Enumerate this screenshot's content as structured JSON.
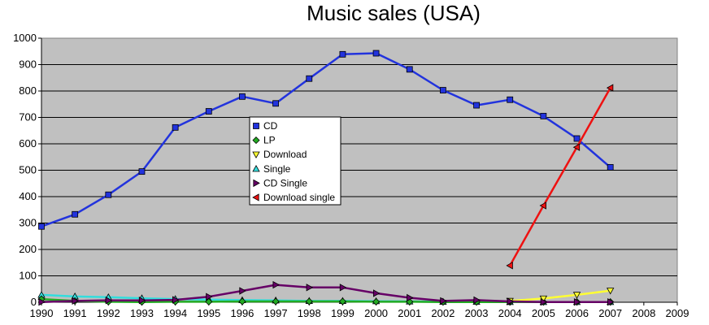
{
  "chart_data": {
    "type": "line",
    "title": "Music sales (USA)",
    "xlabel": "",
    "ylabel": "",
    "x": [
      1990,
      1991,
      1992,
      1993,
      1994,
      1995,
      1996,
      1997,
      1998,
      1999,
      2000,
      2001,
      2002,
      2003,
      2004,
      2005,
      2006,
      2007,
      2008,
      2009
    ],
    "xlim": [
      1990,
      2009
    ],
    "ylim": [
      0,
      1000
    ],
    "yticks": [
      0,
      100,
      200,
      300,
      400,
      500,
      600,
      700,
      800,
      900,
      1000
    ],
    "grid": true,
    "legend_position": "center-left",
    "series": [
      {
        "name": "CD",
        "color": "#2233dd",
        "marker": "square",
        "x": [
          1990,
          1991,
          1992,
          1993,
          1994,
          1995,
          1996,
          1997,
          1998,
          1999,
          2000,
          2001,
          2002,
          2003,
          2004,
          2005,
          2006,
          2007
        ],
        "values": [
          287,
          333,
          407,
          495,
          662,
          723,
          779,
          753,
          847,
          939,
          943,
          882,
          803,
          746,
          767,
          705,
          620,
          511
        ]
      },
      {
        "name": "LP",
        "color": "#22aa22",
        "marker": "diamond",
        "x": [
          1990,
          1991,
          1992,
          1993,
          1994,
          1995,
          1996,
          1997,
          1998,
          1999,
          2000,
          2001,
          2002,
          2003,
          2004,
          2005,
          2006,
          2007
        ],
        "values": [
          12,
          5,
          2,
          1,
          2,
          2,
          3,
          3,
          3,
          3,
          2,
          2,
          1,
          1,
          1,
          1,
          1,
          1
        ]
      },
      {
        "name": "Download",
        "color": "#ffff33",
        "marker": "triangle-down",
        "x": [
          2004,
          2005,
          2006,
          2007
        ],
        "values": [
          5,
          14,
          28,
          44
        ]
      },
      {
        "name": "Single",
        "color": "#33dddd",
        "marker": "triangle-up",
        "x": [
          1990,
          1991,
          1992,
          1993,
          1994,
          1995,
          1996,
          1997,
          1998,
          1999,
          2000,
          2001,
          2002,
          2003,
          2004,
          2005,
          2006,
          2007
        ],
        "values": [
          28,
          22,
          19,
          15,
          12,
          10,
          8,
          7,
          5,
          5,
          4,
          3,
          2,
          2,
          1,
          1,
          1,
          1
        ]
      },
      {
        "name": "CD Single",
        "color": "#660066",
        "marker": "triangle-right",
        "x": [
          1990,
          1991,
          1992,
          1993,
          1994,
          1995,
          1996,
          1997,
          1998,
          1999,
          2000,
          2001,
          2002,
          2003,
          2004,
          2005,
          2006,
          2007
        ],
        "values": [
          1,
          5,
          7,
          7,
          9,
          21,
          43,
          66,
          56,
          56,
          34,
          17,
          5,
          8,
          3,
          1,
          1,
          1
        ]
      },
      {
        "name": "Download single",
        "color": "#ee1111",
        "marker": "triangle-left",
        "x": [
          2004,
          2005,
          2006,
          2007
        ],
        "values": [
          139,
          366,
          587,
          812
        ]
      }
    ]
  }
}
